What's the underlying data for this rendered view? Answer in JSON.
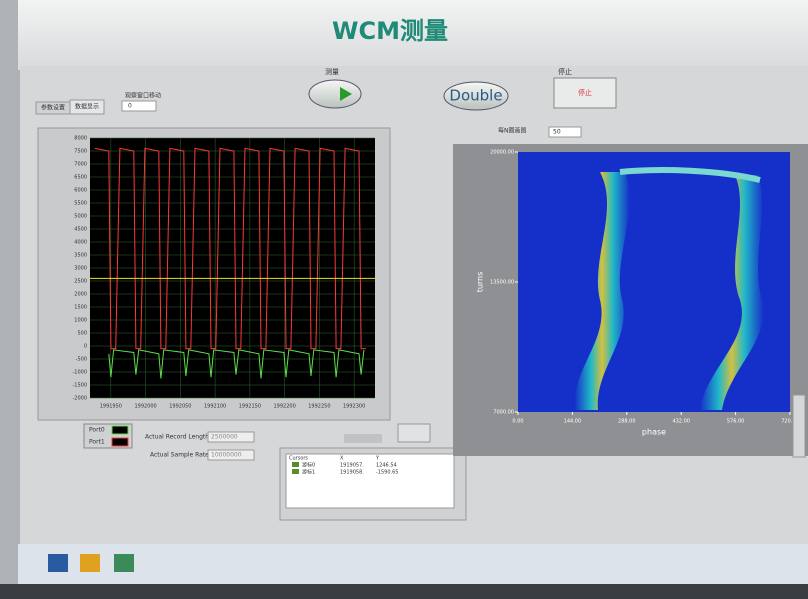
{
  "header": {
    "title": "WCM测量"
  },
  "controls": {
    "tabs": [
      "参数设置",
      "数据显示"
    ],
    "window_move_label": "观察窗口移动",
    "window_move_value": "0",
    "measure_label": "测量",
    "double_button": "Double",
    "stop_label": "停止",
    "stop_button": "停止",
    "every_n_label": "每N圈画图",
    "every_n_value": "50",
    "record_length_label": "Actual Record Length",
    "record_length_value": "2500000",
    "sample_rate_label": "Actual Sample Rate",
    "sample_rate_value": "10000000"
  },
  "cursor_table": {
    "headers": [
      "Cursors",
      "X",
      "Y"
    ],
    "rows": [
      [
        "游标0",
        "1919057.",
        "1246.54"
      ],
      [
        "游标1",
        "1919058.",
        "-1590.65"
      ]
    ]
  },
  "chart_data": [
    {
      "type": "line",
      "cursor_y": 2600,
      "xlim": [
        1991920,
        1992330
      ],
      "xticks": [
        1991950,
        1992000,
        1992050,
        1992100,
        1992150,
        1992200,
        1992250,
        1992300
      ],
      "ylim": [
        -2000,
        8000
      ],
      "yticks": [
        8000,
        7500,
        7000,
        6500,
        6000,
        5500,
        5000,
        4500,
        4000,
        3500,
        3000,
        2500,
        2000,
        1500,
        1000,
        500,
        0,
        -500,
        -1000,
        -1500,
        -2000
      ],
      "series": [
        {
          "name": "Port0",
          "color": "#5ee04a",
          "x": [
            1991947,
            1991950,
            1991954,
            1991983,
            1991986,
            1991990,
            1992019,
            1992022,
            1992026,
            1992055,
            1992058,
            1992062,
            1992091,
            1992094,
            1992098,
            1992127,
            1992130,
            1992134,
            1992163,
            1992166,
            1992170,
            1992199,
            1992202,
            1992206,
            1992235,
            1992238,
            1992242,
            1992271,
            1992274,
            1992278,
            1992307,
            1992310,
            1992314
          ],
          "values": [
            -300,
            -1200,
            -150,
            -250,
            -1100,
            -150,
            -300,
            -1250,
            -150,
            -250,
            -1150,
            -150,
            -300,
            -1200,
            -150,
            -250,
            -1100,
            -150,
            -300,
            -1250,
            -150,
            -250,
            -1200,
            -150,
            -300,
            -1150,
            -150,
            -250,
            -1200,
            -150,
            -300,
            -1100,
            -150
          ]
        },
        {
          "name": "Port1",
          "color": "#ff3838",
          "x": [
            1991927,
            1991947,
            1991950,
            1991957,
            1991963,
            1991983,
            1991986,
            1991993,
            1991999,
            1992019,
            1992022,
            1992029,
            1992035,
            1992055,
            1992058,
            1992065,
            1992071,
            1992091,
            1992094,
            1992101,
            1992107,
            1992127,
            1992130,
            1992137,
            1992143,
            1992163,
            1992166,
            1992173,
            1992179,
            1992199,
            1992202,
            1992209,
            1992215,
            1992235,
            1992238,
            1992245,
            1992251,
            1992271,
            1992274,
            1992281,
            1992287,
            1992307,
            1992310,
            1992317
          ],
          "values": [
            7600,
            7500,
            -100,
            -100,
            7600,
            7500,
            -100,
            -100,
            7600,
            7500,
            -100,
            -100,
            7600,
            7500,
            -100,
            -100,
            7600,
            7500,
            -100,
            -100,
            7600,
            7500,
            -100,
            -100,
            7600,
            7500,
            -100,
            -100,
            7600,
            7500,
            -100,
            -100,
            7600,
            7500,
            -100,
            -100,
            7600,
            7500,
            -100,
            -100,
            7600,
            7500,
            -100,
            -100
          ]
        }
      ]
    },
    {
      "type": "heatmap",
      "x_label": "phase",
      "y_label": "turns",
      "xlim": [
        0,
        720
      ],
      "xticks": [
        {
          "value": 0,
          "label": "0.00"
        },
        {
          "value": 144,
          "label": "144.00"
        },
        {
          "value": 288,
          "label": "288.00"
        },
        {
          "value": 432,
          "label": "432.00"
        },
        {
          "value": 576,
          "label": "576.00"
        },
        {
          "value": 720,
          "label": "720.00"
        }
      ],
      "ylim": [
        7000,
        20000
      ],
      "yticks": [
        {
          "value": 7000,
          "label": "7000.00"
        },
        {
          "value": 13500,
          "label": "13500.00"
        },
        {
          "value": 20000,
          "label": "20000.00"
        }
      ]
    }
  ]
}
